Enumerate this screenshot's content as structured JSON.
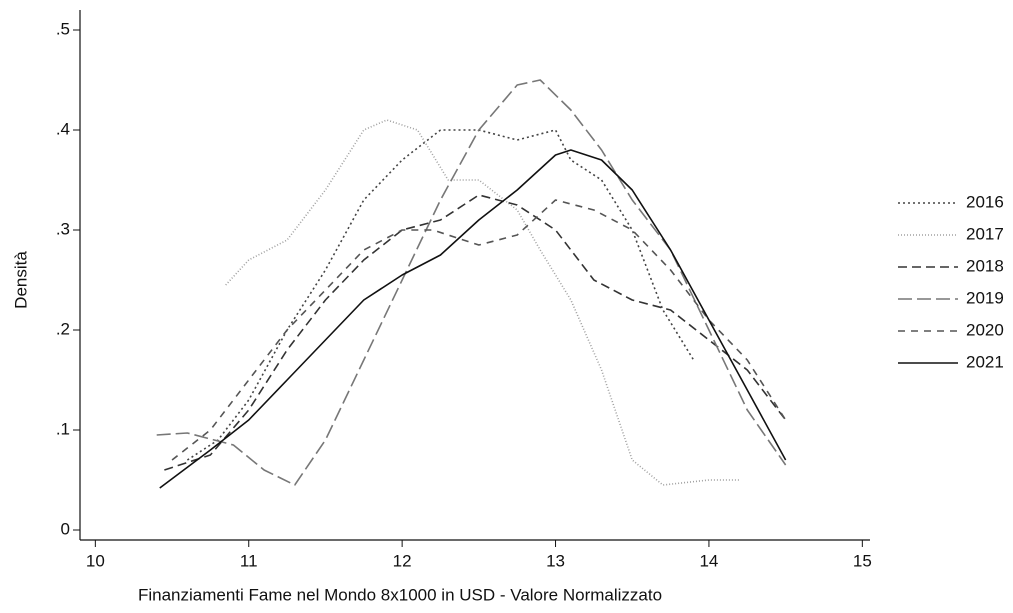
{
  "chart_data": {
    "type": "line",
    "xlabel": "Finanziamenti Fame nel Mondo 8x1000 in USD - Valore Normalizzato",
    "ylabel": "Densità",
    "xlim": [
      9.9,
      15.05
    ],
    "ylim": [
      -0.01,
      0.52
    ],
    "xticks": [
      10,
      11,
      12,
      13,
      14,
      15
    ],
    "yticks": [
      0,
      {
        "value": 0.1,
        "label": ".1"
      },
      {
        "value": 0.2,
        "label": ".2"
      },
      {
        "value": 0.3,
        "label": ".3"
      },
      {
        "value": 0.4,
        "label": ".4"
      },
      {
        "value": 0.5,
        "label": ".5"
      }
    ],
    "legend": "right",
    "series": [
      {
        "name": "2016",
        "color": "#444444",
        "dash": "2,3",
        "x": [
          10.6,
          10.8,
          11.0,
          11.25,
          11.5,
          11.75,
          12.0,
          12.25,
          12.5,
          12.75,
          13.0,
          13.1,
          13.3,
          13.5,
          13.7,
          13.9
        ],
        "values": [
          0.07,
          0.09,
          0.13,
          0.2,
          0.26,
          0.33,
          0.37,
          0.4,
          0.4,
          0.39,
          0.4,
          0.37,
          0.35,
          0.3,
          0.22,
          0.17
        ]
      },
      {
        "name": "2017",
        "color": "#a0a0a0",
        "dash": "1,2",
        "x": [
          10.85,
          11.0,
          11.25,
          11.5,
          11.75,
          11.9,
          12.1,
          12.3,
          12.5,
          12.75,
          12.9,
          13.1,
          13.3,
          13.5,
          13.7,
          14.0,
          14.2
        ],
        "values": [
          0.245,
          0.27,
          0.29,
          0.34,
          0.4,
          0.41,
          0.4,
          0.35,
          0.35,
          0.32,
          0.28,
          0.23,
          0.16,
          0.07,
          0.045,
          0.05,
          0.05
        ]
      },
      {
        "name": "2018",
        "color": "#333333",
        "dash": "9,5",
        "x": [
          10.45,
          10.75,
          11.0,
          11.25,
          11.5,
          11.75,
          12.0,
          12.25,
          12.5,
          12.75,
          13.0,
          13.25,
          13.5,
          13.75,
          14.0,
          14.25,
          14.5
        ],
        "values": [
          0.06,
          0.075,
          0.12,
          0.18,
          0.23,
          0.27,
          0.3,
          0.31,
          0.335,
          0.325,
          0.3,
          0.25,
          0.23,
          0.22,
          0.19,
          0.16,
          0.11
        ]
      },
      {
        "name": "2019",
        "color": "#777777",
        "dash": "14,5",
        "x": [
          10.4,
          10.6,
          10.9,
          11.1,
          11.3,
          11.5,
          11.75,
          12.0,
          12.25,
          12.5,
          12.75,
          12.9,
          13.1,
          13.3,
          13.5,
          13.75,
          14.0,
          14.25,
          14.5
        ],
        "values": [
          0.095,
          0.097,
          0.085,
          0.06,
          0.045,
          0.09,
          0.17,
          0.25,
          0.33,
          0.4,
          0.445,
          0.45,
          0.42,
          0.38,
          0.33,
          0.28,
          0.2,
          0.12,
          0.065
        ]
      },
      {
        "name": "2020",
        "color": "#555555",
        "dash": "7,6",
        "x": [
          10.5,
          10.75,
          11.0,
          11.25,
          11.5,
          11.75,
          12.0,
          12.2,
          12.5,
          12.75,
          13.0,
          13.25,
          13.5,
          13.75,
          14.0,
          14.25,
          14.5
        ],
        "values": [
          0.07,
          0.1,
          0.15,
          0.2,
          0.24,
          0.28,
          0.3,
          0.3,
          0.285,
          0.295,
          0.33,
          0.32,
          0.3,
          0.26,
          0.21,
          0.17,
          0.11
        ]
      },
      {
        "name": "2021",
        "color": "#111111",
        "dash": "none",
        "x": [
          10.42,
          10.75,
          11.0,
          11.25,
          11.5,
          11.75,
          12.0,
          12.25,
          12.5,
          12.75,
          13.0,
          13.1,
          13.3,
          13.5,
          13.75,
          14.0,
          14.25,
          14.5
        ],
        "values": [
          0.042,
          0.08,
          0.11,
          0.15,
          0.19,
          0.23,
          0.255,
          0.275,
          0.31,
          0.34,
          0.375,
          0.38,
          0.37,
          0.34,
          0.28,
          0.21,
          0.14,
          0.07
        ]
      }
    ]
  }
}
